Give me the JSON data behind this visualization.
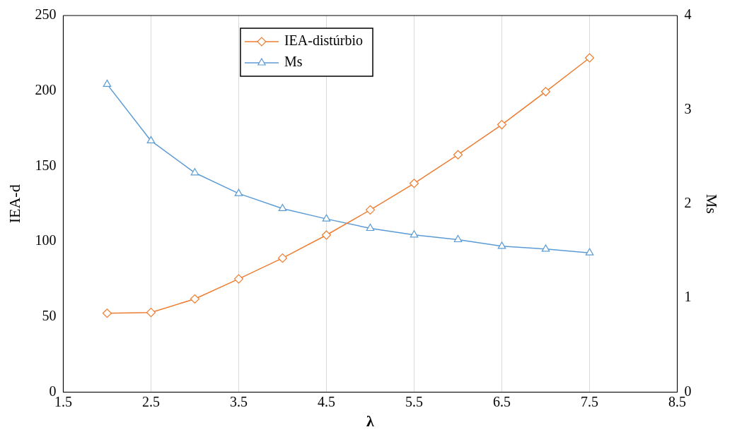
{
  "chart_data": {
    "type": "line",
    "xlabel": "λ",
    "ylabel": "IEA-d",
    "y2label": "Ms",
    "x": [
      2,
      2.5,
      3,
      3.5,
      4,
      4.5,
      5,
      5.5,
      6,
      6.5,
      7,
      7.5
    ],
    "series": [
      {
        "name": "IEA-distúrbio",
        "color": "#ed7d31",
        "marker": "diamond",
        "values": [
          52.4,
          52.9,
          61.9,
          75.2,
          89,
          104.3,
          121,
          138.6,
          157.6,
          177.6,
          199.5,
          221.9
        ]
      },
      {
        "name": "Ms",
        "color": "#5b9bd5",
        "marker": "triangle",
        "axis": "y2",
        "values": [
          3.27,
          2.67,
          2.33,
          2.11,
          1.95,
          1.84,
          1.74,
          1.67,
          1.62,
          1.55,
          1.52,
          1.48
        ]
      }
    ],
    "xlim": [
      1.5,
      8.5
    ],
    "xticks": [
      1.5,
      2.5,
      3.5,
      4.5,
      5.5,
      6.5,
      7.5,
      8.5
    ],
    "ylim": [
      0,
      250
    ],
    "yticks": [
      0,
      50,
      100,
      150,
      200,
      250
    ],
    "y2lim": [
      0,
      4
    ],
    "y2ticks": [
      0,
      1,
      2,
      3,
      4
    ],
    "grid": "x",
    "legend": "top",
    "line_style": "solid"
  }
}
